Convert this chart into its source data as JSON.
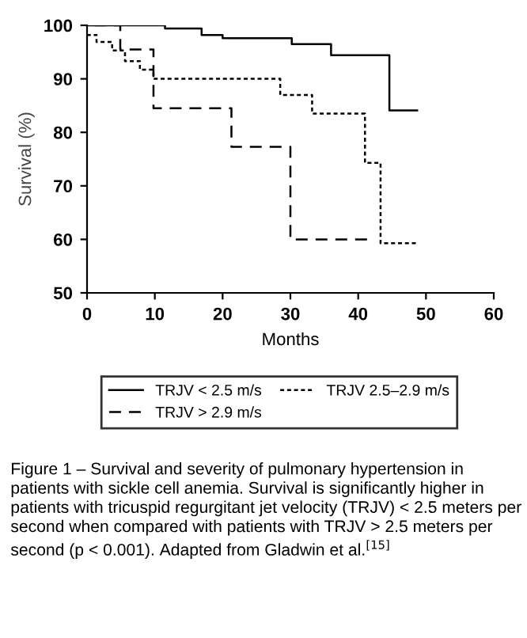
{
  "chart_data": {
    "type": "step",
    "xlabel": "Months",
    "ylabel": "Survival (%)",
    "xlim": [
      0,
      60
    ],
    "xticks": [
      0,
      10,
      20,
      30,
      40,
      50,
      60
    ],
    "ylim": [
      50,
      100
    ],
    "yticks": [
      50,
      60,
      70,
      80,
      90,
      100
    ],
    "grid": false,
    "legend": "bottom",
    "series": [
      {
        "name": "TRJV < 2.5 m/s",
        "color": "#000000",
        "line_style": "solid",
        "x": [
          0,
          11.5,
          16.9,
          20,
          30.2,
          36,
          44.6,
          48.7
        ],
        "values": [
          100,
          99.4,
          98.2,
          97.6,
          96.5,
          94.4,
          84.1,
          84.1
        ]
      },
      {
        "name": "TRJV 2.5–2.9 m/s",
        "color": "#000000",
        "line_style": "dotted",
        "x": [
          0,
          1.4,
          3.7,
          5.6,
          7.8,
          9.8,
          28.5,
          33.2,
          41,
          43.3,
          48.5
        ],
        "values": [
          98.2,
          96.9,
          95.3,
          93.3,
          91.7,
          90,
          87,
          83.5,
          74.3,
          59.3,
          59.3
        ]
      },
      {
        "name": "TRJV > 2.9 m/s",
        "color": "#000000",
        "line_style": "dashed",
        "x": [
          0,
          4.9,
          9.8,
          21.3,
          30,
          41.3
        ],
        "values": [
          100,
          95.5,
          84.5,
          77.3,
          60,
          60
        ]
      }
    ],
    "annotations": [
      "Figure 1 – Survival and severity of pulmonary hypertension in patients with sickle cell anemia. Survival is significantly higher in patients with tricuspid regurgitant jet velocity (TRJV) < 2.5 meters per second when compared with patients with TRJV > 2.5 meters per second (p < 0.001). Adapted from Gladwin et al.$^{[15]}$"
    ]
  }
}
